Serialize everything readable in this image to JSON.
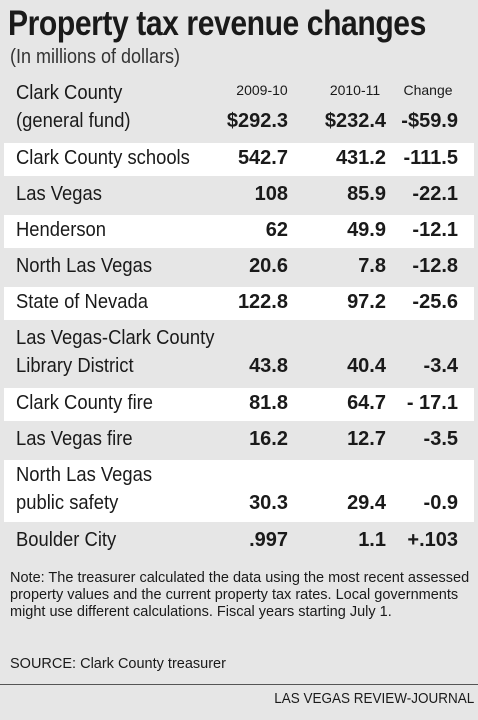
{
  "header": {
    "title": "Property tax revenue changes",
    "subtitle": "(In millions of dollars)"
  },
  "table": {
    "columns": [
      "2009-10",
      "2010-11",
      "Change"
    ],
    "rows": [
      {
        "name": [
          "Clark County",
          "(general fund)"
        ],
        "values": [
          "$292.3",
          "$232.4",
          "-$59.9"
        ]
      },
      {
        "name": [
          "Clark County schools"
        ],
        "values": [
          "542.7",
          "431.2",
          "-111.5"
        ]
      },
      {
        "name": [
          "Las Vegas"
        ],
        "values": [
          "108",
          "85.9",
          "-22.1"
        ]
      },
      {
        "name": [
          "Henderson"
        ],
        "values": [
          "62",
          "49.9",
          "-12.1"
        ]
      },
      {
        "name": [
          "North Las Vegas"
        ],
        "values": [
          "20.6",
          "7.8",
          "-12.8"
        ]
      },
      {
        "name": [
          "State of Nevada"
        ],
        "values": [
          "122.8",
          "97.2",
          "-25.6"
        ]
      },
      {
        "name": [
          "Las Vegas-Clark County",
          "Library District"
        ],
        "values": [
          "43.8",
          "40.4",
          "-3.4"
        ]
      },
      {
        "name": [
          "Clark County fire"
        ],
        "values": [
          "81.8",
          "64.7",
          "- 17.1"
        ]
      },
      {
        "name": [
          "Las Vegas fire"
        ],
        "values": [
          "16.2",
          "12.7",
          "-3.5"
        ]
      },
      {
        "name": [
          "North Las Vegas",
          "public safety"
        ],
        "values": [
          "30.3",
          "29.4",
          "-0.9"
        ]
      },
      {
        "name": [
          "Boulder City"
        ],
        "values": [
          ".997",
          "1.1",
          "+.103"
        ]
      }
    ]
  },
  "footer": {
    "note": "Note: The treasurer calculated the data using the most recent assessed property values and the current property tax rates. Local governments might use different calculations. Fiscal years starting July 1.",
    "source": "SOURCE: Clark County treasurer",
    "credit": "LAS VEGAS REVIEW-JOURNAL"
  }
}
